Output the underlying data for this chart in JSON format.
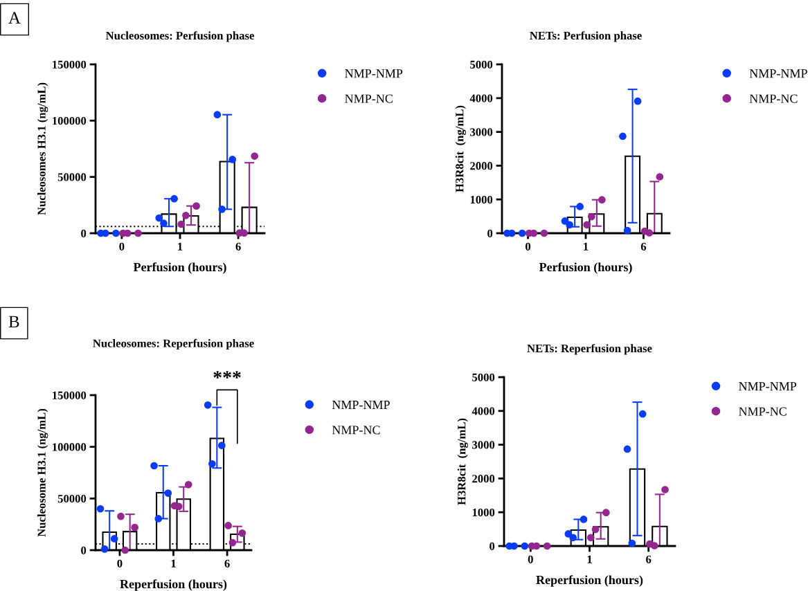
{
  "chart_data": [
    {
      "type": "bar",
      "title": "Nucleosomes: Perfusion phase",
      "xlabel": "Perfusion (hours)",
      "ylabel": "Nucleosomes H3.1 (ng/mL)",
      "annotations": [
        "A"
      ],
      "categories": [
        "0",
        "1",
        "6"
      ],
      "ylim": [
        0,
        150000
      ],
      "yticks": [
        0,
        50000,
        100000,
        150000
      ],
      "legend": "top right",
      "ref_lines": [
        {
          "axis": "y",
          "value": 6000,
          "line_style": "dotted",
          "color": "#000000"
        }
      ],
      "series": [
        {
          "color": "#ffffff",
          "values": [
            0,
            17000,
            63600
          ],
          "errors": [
            null,
            [
              6000,
              30600
            ],
            [
              21300,
              105300
            ]
          ]
        },
        {
          "color": "#ffffff",
          "values": [
            0,
            15400,
            23000
          ],
          "errors": [
            null,
            [
              7300,
              24200
            ],
            [
              0,
              62600
            ]
          ]
        },
        {
          "type": "scatter",
          "name": "NMP-NMP",
          "color": "#0a3cf5",
          "marker": "circle",
          "x": [
            "0",
            "0",
            "0",
            "1",
            "1",
            "1",
            "6",
            "6",
            "6"
          ],
          "values": [
            0,
            0,
            0,
            8800,
            30600,
            13500,
            21300,
            65500,
            105300
          ]
        },
        {
          "type": "scatter",
          "name": "NMP-NC",
          "color": "#93278f",
          "marker": "circle",
          "x": [
            "0",
            "0",
            "0",
            "1",
            "1",
            "1",
            "6",
            "6",
            "6"
          ],
          "values": [
            0,
            0,
            0,
            15800,
            24200,
            8000,
            200,
            68500,
            200
          ]
        }
      ]
    },
    {
      "type": "bar",
      "title": "NETs: Perfusion phase",
      "xlabel": "Perfusion (hours)",
      "ylabel": "H3R8cit  (ng/mL)",
      "categories": [
        "0",
        "1",
        "6"
      ],
      "ylim": [
        0,
        5000
      ],
      "yticks": [
        0,
        1000,
        2000,
        3000,
        4000,
        5000
      ],
      "legend": "top right",
      "series": [
        {
          "color": "#ffffff",
          "values": [
            0,
            470,
            2280
          ],
          "errors": [
            null,
            [
              190,
              790
            ],
            [
              310,
              4260
            ]
          ]
        },
        {
          "color": "#ffffff",
          "values": [
            0,
            570,
            580
          ],
          "errors": [
            null,
            [
              210,
              990
            ],
            [
              0,
              1530
            ]
          ]
        },
        {
          "type": "scatter",
          "name": "NMP-NMP",
          "color": "#0a3cf5",
          "marker": "circle",
          "x": [
            "0",
            "0",
            "0",
            "1",
            "1",
            "1",
            "6",
            "6",
            "6"
          ],
          "values": [
            0,
            0,
            0,
            250,
            790,
            360,
            80,
            3910,
            2870
          ]
        },
        {
          "type": "scatter",
          "name": "NMP-NC",
          "color": "#93278f",
          "marker": "circle",
          "x": [
            "0",
            "0",
            "0",
            "1",
            "1",
            "1",
            "6",
            "6",
            "6"
          ],
          "values": [
            0,
            0,
            0,
            490,
            990,
            250,
            10,
            1670,
            60
          ]
        }
      ]
    },
    {
      "type": "bar",
      "title": "Nucleosomes: Reperfusion phase",
      "xlabel": "Reperfusion (hours)",
      "ylabel": "Nucleosome H3.1 (ng/mL)",
      "annotations": [
        "B",
        "***"
      ],
      "categories": [
        "0",
        "1",
        "6"
      ],
      "ylim": [
        0,
        150000
      ],
      "yticks": [
        0,
        50000,
        100000,
        150000
      ],
      "legend": "top right",
      "ref_lines": [
        {
          "axis": "y",
          "value": 6000,
          "line_style": "dotted",
          "color": "#000000"
        }
      ],
      "series": [
        {
          "color": "#ffffff",
          "values": [
            17400,
            55600,
            108200
          ],
          "errors": [
            [
              0,
              38000
            ],
            [
              30500,
              81700
            ],
            [
              79500,
              138200
            ]
          ]
        },
        {
          "color": "#ffffff",
          "values": [
            18000,
            49400,
            15400
          ],
          "errors": [
            [
              0,
              34700
            ],
            [
              37600,
              61200
            ],
            [
              7800,
              23000
            ]
          ]
        },
        {
          "type": "scatter",
          "name": "NMP-NMP",
          "color": "#0a3cf5",
          "marker": "circle",
          "x": [
            "0",
            "0",
            "0",
            "1",
            "1",
            "1",
            "6",
            "6",
            "6"
          ],
          "values": [
            1100,
            11100,
            40000,
            30500,
            55200,
            81700,
            83500,
            101300,
            140400
          ]
        },
        {
          "type": "scatter",
          "name": "NMP-NC",
          "color": "#93278f",
          "marker": "circle",
          "x": [
            "0",
            "0",
            "0",
            "1",
            "1",
            "1",
            "6",
            "6",
            "6"
          ],
          "values": [
            0,
            22000,
            32700,
            42300,
            63400,
            43000,
            7300,
            16500,
            23800
          ]
        }
      ]
    },
    {
      "type": "bar",
      "title": "NETs: Reperfusion phase",
      "xlabel": "Reperfusion (hours)",
      "ylabel": "H3R8cit  (ng/mL)",
      "categories": [
        "0",
        "1",
        "6"
      ],
      "ylim": [
        0,
        5000
      ],
      "yticks": [
        0,
        1000,
        2000,
        3000,
        4000,
        5000
      ],
      "legend": "top right",
      "series": [
        {
          "color": "#ffffff",
          "values": [
            0,
            470,
            2280
          ],
          "errors": [
            null,
            [
              190,
              790
            ],
            [
              310,
              4260
            ]
          ]
        },
        {
          "color": "#ffffff",
          "values": [
            0,
            570,
            580
          ],
          "errors": [
            null,
            [
              210,
              990
            ],
            [
              0,
              1530
            ]
          ]
        },
        {
          "type": "scatter",
          "name": "NMP-NMP",
          "color": "#0a3cf5",
          "marker": "circle",
          "x": [
            "0",
            "0",
            "0",
            "1",
            "1",
            "1",
            "6",
            "6",
            "6"
          ],
          "values": [
            0,
            0,
            0,
            250,
            790,
            360,
            80,
            3910,
            2870
          ]
        },
        {
          "type": "scatter",
          "name": "NMP-NC",
          "color": "#93278f",
          "marker": "circle",
          "x": [
            "0",
            "0",
            "0",
            "1",
            "1",
            "1",
            "6",
            "6",
            "6"
          ],
          "values": [
            0,
            0,
            0,
            490,
            990,
            250,
            10,
            1670,
            60
          ]
        }
      ]
    }
  ]
}
